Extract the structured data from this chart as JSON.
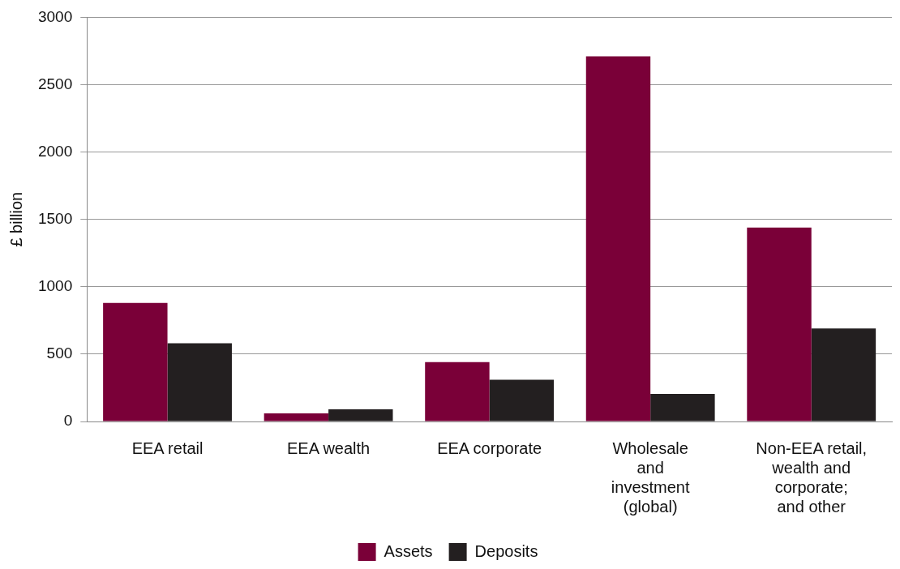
{
  "chart_data": {
    "type": "bar",
    "ylabel": "£ billion",
    "categories": [
      "EEA retail",
      "EEA wealth",
      "EEA corporate",
      "Wholesale\nand\ninvestment\n(global)",
      "Non-EEA retail,\nwealth and\ncorporate;\nand other"
    ],
    "series": [
      {
        "name": "Assets",
        "color": "#7a0038",
        "values": [
          880,
          60,
          440,
          2710,
          1440
        ]
      },
      {
        "name": "Deposits",
        "color": "#231f20",
        "values": [
          580,
          90,
          310,
          205,
          690
        ]
      }
    ],
    "ylim": [
      0,
      3000
    ],
    "yticks": [
      0,
      500,
      1000,
      1500,
      2000,
      2500,
      3000
    ],
    "grid": "y",
    "legend": "bottom"
  }
}
